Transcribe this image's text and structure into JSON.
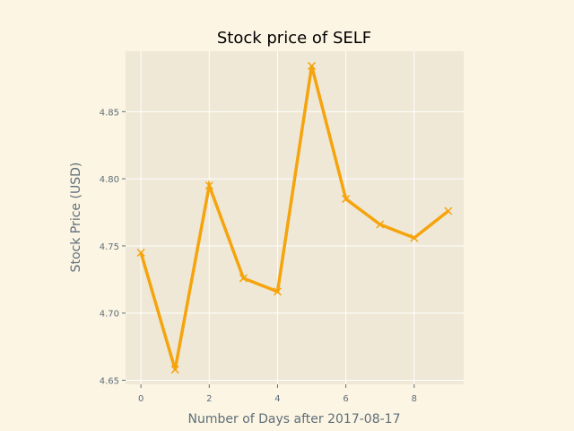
{
  "chart_data": {
    "type": "line",
    "title": "Stock price of SELF",
    "xlabel": "Number of Days after 2017-08-17",
    "ylabel": "Stock Price (USD)",
    "x": [
      0,
      1,
      2,
      3,
      4,
      5,
      6,
      7,
      8,
      9
    ],
    "series": [
      {
        "values": [
          4.745,
          4.658,
          4.795,
          4.726,
          4.716,
          4.884,
          4.785,
          4.766,
          4.756,
          4.776
        ]
      }
    ],
    "xticks": [
      0,
      2,
      4,
      6,
      8
    ],
    "xtick_labels": [
      "0",
      "2",
      "4",
      "6",
      "8"
    ],
    "yticks": [
      4.65,
      4.7,
      4.75,
      4.8,
      4.85
    ],
    "ytick_labels": [
      "4.65",
      "4.70",
      "4.75",
      "4.80",
      "4.85"
    ],
    "xlim": [
      -0.45,
      9.45
    ],
    "ylim": [
      4.647,
      4.895
    ],
    "grid": true,
    "marker": "x",
    "colors": {
      "line": "#f5a40d",
      "plot_background": "#efe8d6",
      "figure_background": "#fcf5e3",
      "grid": "#ffffff",
      "text": "#5f6e79"
    }
  }
}
